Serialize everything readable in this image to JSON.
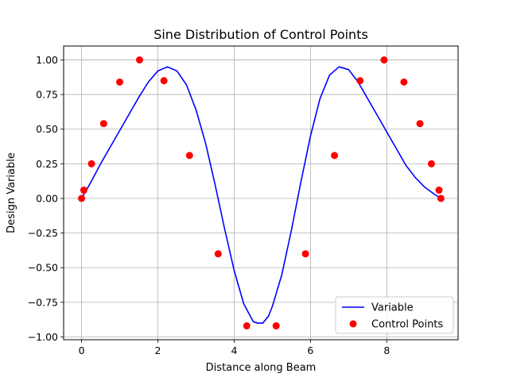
{
  "chart_data": {
    "type": "line",
    "title": "Sine Distribution of Control Points",
    "xlabel": "Distance along Beam",
    "ylabel": "Design Variable",
    "xlim": [
      -0.47,
      9.87
    ],
    "ylim": [
      -1.02,
      1.1
    ],
    "xticks": [
      0,
      2,
      4,
      6,
      8
    ],
    "xtick_labels": [
      "0",
      "2",
      "4",
      "6",
      "8"
    ],
    "yticks": [
      -1.0,
      -0.75,
      -0.5,
      -0.25,
      0.0,
      0.25,
      0.5,
      0.75,
      1.0
    ],
    "ytick_labels": [
      "−1.00",
      "−0.75",
      "−0.50",
      "−0.25",
      "0.00",
      "0.25",
      "0.50",
      "0.75",
      "1.00"
    ],
    "grid": true,
    "legend_position": "lower-right",
    "series": [
      {
        "name": "Variable",
        "kind": "line",
        "color": "#0000ff",
        "x": [
          0.0,
          0.25,
          0.5,
          0.75,
          1.0,
          1.25,
          1.5,
          1.75,
          2.0,
          2.25,
          2.5,
          2.75,
          3.0,
          3.25,
          3.5,
          3.75,
          4.0,
          4.25,
          4.5,
          4.62,
          4.75,
          4.9,
          5.0,
          5.25,
          5.5,
          5.75,
          6.0,
          6.25,
          6.5,
          6.75,
          7.0,
          7.25,
          7.5,
          7.75,
          8.0,
          8.25,
          8.5,
          8.75,
          9.0,
          9.25,
          9.42
        ],
        "y": [
          0.0,
          0.12,
          0.25,
          0.37,
          0.49,
          0.61,
          0.73,
          0.84,
          0.92,
          0.95,
          0.92,
          0.82,
          0.64,
          0.4,
          0.1,
          -0.22,
          -0.52,
          -0.76,
          -0.89,
          -0.9,
          -0.9,
          -0.85,
          -0.78,
          -0.55,
          -0.23,
          0.12,
          0.45,
          0.72,
          0.89,
          0.95,
          0.93,
          0.84,
          0.72,
          0.6,
          0.48,
          0.36,
          0.24,
          0.15,
          0.08,
          0.03,
          0.0
        ]
      },
      {
        "name": "Control Points",
        "kind": "scatter",
        "color": "#ff0000",
        "x": [
          0.0,
          0.06,
          0.26,
          0.58,
          1.0,
          1.52,
          2.16,
          2.83,
          3.58,
          4.33,
          5.1,
          5.87,
          6.63,
          7.3,
          7.93,
          8.45,
          8.87,
          9.17,
          9.37,
          9.42
        ],
        "y": [
          0.0,
          0.06,
          0.25,
          0.54,
          0.84,
          1.0,
          0.85,
          0.31,
          -0.4,
          -0.92,
          -0.92,
          -0.4,
          0.31,
          0.85,
          1.0,
          0.84,
          0.54,
          0.25,
          0.06,
          0.0
        ]
      }
    ]
  }
}
